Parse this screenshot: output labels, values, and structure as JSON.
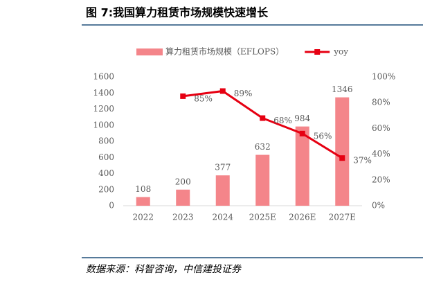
{
  "chart_data": {
    "type": "bar",
    "title": "图 7:我国算力租赁市场规模快速增长",
    "source": "数据来源：科智咨询，中信建投证券",
    "categories": [
      "2022",
      "2023",
      "2024",
      "2025E",
      "2026E",
      "2027E"
    ],
    "series": [
      {
        "name": "算力租赁市场规模（EFLOPS）",
        "type": "bar",
        "color": "#f4858a",
        "values": [
          108,
          200,
          377,
          632,
          984,
          1346
        ]
      },
      {
        "name": "yoy",
        "type": "line",
        "axis": "y2",
        "color": "#e60012",
        "values": [
          null,
          85,
          89,
          68,
          56,
          37
        ],
        "value_labels": [
          null,
          "85%",
          "89%",
          "68%",
          "56%",
          "37%"
        ]
      }
    ],
    "ylim": [
      0,
      1600
    ],
    "yticks": [
      0,
      200,
      400,
      600,
      800,
      1000,
      1200,
      1400,
      1600
    ],
    "y2lim": [
      0,
      100
    ],
    "y2ticks": [
      {
        "value": 0,
        "label": "0%"
      },
      {
        "value": 20,
        "label": "20%"
      },
      {
        "value": 40,
        "label": "40%"
      },
      {
        "value": 60,
        "label": "60%"
      },
      {
        "value": 80,
        "label": "80%"
      },
      {
        "value": 100,
        "label": "100%"
      }
    ],
    "legend": "top"
  }
}
